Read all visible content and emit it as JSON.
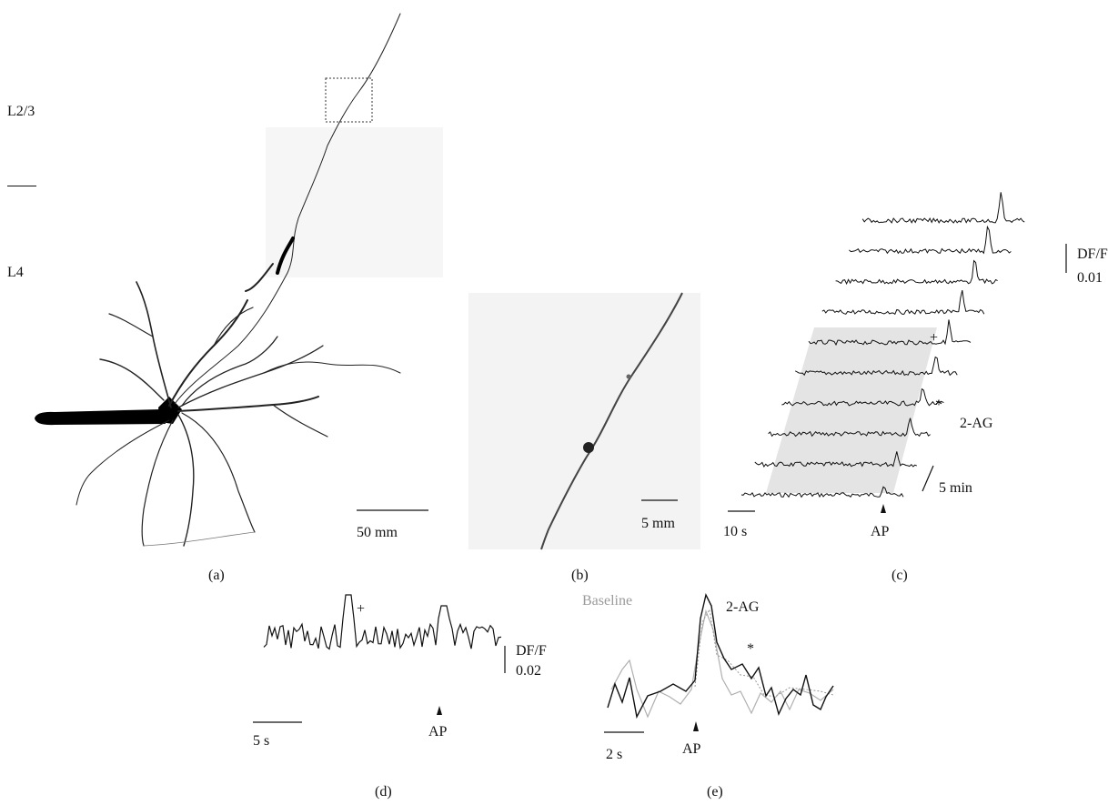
{
  "panel_a": {
    "layer_upper": "L2/3",
    "layer_lower": "L4",
    "scalebar_label": "50 mm",
    "panel_label": "(a)"
  },
  "panel_b": {
    "scalebar_label": "5 mm",
    "panel_label": "(b)"
  },
  "panel_c": {
    "dff_label": "DF/F",
    "dff_value": "0.01",
    "marker_plus": "+",
    "marker_star": "*",
    "drug_label": "2-AG",
    "time_axis_label": "5 min",
    "time_scalebar_label": "10 s",
    "ap_label": "AP",
    "panel_label": "(c)",
    "trace_count": 10
  },
  "panel_d": {
    "marker_plus": "+",
    "dff_label": "DF/F",
    "dff_value": "0.02",
    "time_scalebar_label": "5 s",
    "ap_label": "AP",
    "panel_label": "(d)"
  },
  "panel_e": {
    "baseline_label": "Baseline",
    "drug_label": "2-AG",
    "marker_star": "*",
    "time_scalebar_label": "2 s",
    "ap_label": "AP",
    "panel_label": "(e)"
  },
  "colors": {
    "trace": "#111111",
    "baseline_trace": "#b0b0b0",
    "shade": "#e4e4e4",
    "label_gray": "#9a9a9a"
  }
}
